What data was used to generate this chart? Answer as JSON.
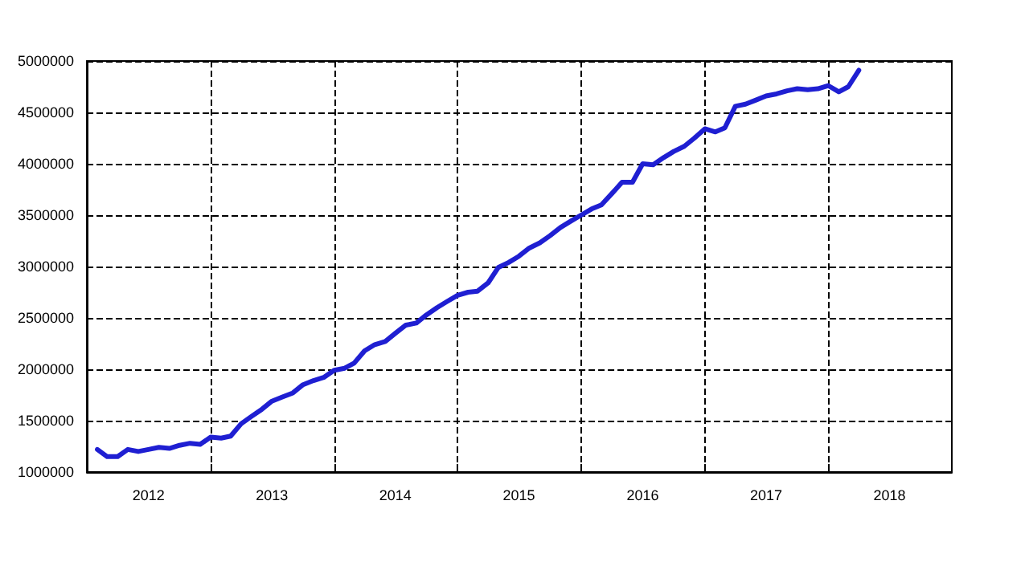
{
  "chart_data": {
    "type": "line",
    "color": "#1f1fd2",
    "marker": "none",
    "line_style": "solid",
    "grid": true,
    "x": [
      "2012-02",
      "2012-03",
      "2012-04",
      "2012-05",
      "2012-06",
      "2012-07",
      "2012-08",
      "2012-09",
      "2012-10",
      "2012-11",
      "2012-12",
      "2013-01",
      "2013-02",
      "2013-03",
      "2013-04",
      "2013-05",
      "2013-06",
      "2013-07",
      "2013-08",
      "2013-09",
      "2013-10",
      "2013-11",
      "2013-12",
      "2014-01",
      "2014-02",
      "2014-03",
      "2014-04",
      "2014-05",
      "2014-06",
      "2014-07",
      "2014-08",
      "2014-09",
      "2014-10",
      "2014-11",
      "2014-12",
      "2015-01",
      "2015-02",
      "2015-03",
      "2015-04",
      "2015-05",
      "2015-06",
      "2015-07",
      "2015-08",
      "2015-09",
      "2015-10",
      "2015-11",
      "2015-12",
      "2016-01",
      "2016-02",
      "2016-03",
      "2016-04",
      "2016-05",
      "2016-06",
      "2016-07",
      "2016-08",
      "2016-09",
      "2016-10",
      "2016-11",
      "2016-12",
      "2017-01",
      "2017-02",
      "2017-03",
      "2017-04",
      "2017-05",
      "2017-06",
      "2017-07",
      "2017-08",
      "2017-09",
      "2017-10",
      "2017-11",
      "2017-12",
      "2018-01",
      "2018-02",
      "2018-03",
      "2018-04"
    ],
    "values": [
      1220000,
      1150000,
      1150000,
      1220000,
      1200000,
      1220000,
      1240000,
      1230000,
      1260000,
      1280000,
      1270000,
      1340000,
      1330000,
      1350000,
      1470000,
      1540000,
      1610000,
      1690000,
      1730000,
      1770000,
      1850000,
      1890000,
      1920000,
      1990000,
      2010000,
      2060000,
      2180000,
      2240000,
      2270000,
      2350000,
      2430000,
      2450000,
      2530000,
      2600000,
      2660000,
      2720000,
      2750000,
      2760000,
      2840000,
      2990000,
      3040000,
      3100000,
      3180000,
      3230000,
      3300000,
      3380000,
      3440000,
      3500000,
      3560000,
      3600000,
      3710000,
      3820000,
      3820000,
      4000000,
      3990000,
      4060000,
      4120000,
      4170000,
      4250000,
      4340000,
      4310000,
      4350000,
      4560000,
      4580000,
      4620000,
      4660000,
      4680000,
      4710000,
      4730000,
      4720000,
      4730000,
      4760000,
      4700000,
      4750000,
      4910000
    ],
    "xlim": [
      "2012-01-01",
      "2019-01-01"
    ],
    "xticks": [
      {
        "value": "2012-07-01",
        "label": "2012"
      },
      {
        "value": "2013-01-01",
        "label": null
      },
      {
        "value": "2013-07-01",
        "label": "2013"
      },
      {
        "value": "2014-01-01",
        "label": null
      },
      {
        "value": "2014-07-01",
        "label": "2014"
      },
      {
        "value": "2015-01-01",
        "label": null
      },
      {
        "value": "2015-07-01",
        "label": "2015"
      },
      {
        "value": "2016-01-01",
        "label": null
      },
      {
        "value": "2016-07-01",
        "label": "2016"
      },
      {
        "value": "2017-01-01",
        "label": null
      },
      {
        "value": "2017-07-01",
        "label": "2017"
      },
      {
        "value": "2018-01-01",
        "label": null
      },
      {
        "value": "2018-07-01",
        "label": "2018"
      }
    ],
    "ylim": [
      1000000,
      5000000
    ],
    "yticks": [
      1000000,
      1500000,
      2000000,
      2500000,
      3000000,
      3500000,
      4000000,
      4500000,
      5000000
    ]
  }
}
